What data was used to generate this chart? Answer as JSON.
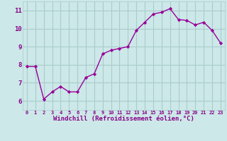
{
  "x": [
    0,
    1,
    2,
    3,
    4,
    5,
    6,
    7,
    8,
    9,
    10,
    11,
    12,
    13,
    14,
    15,
    16,
    17,
    18,
    19,
    20,
    21,
    22,
    23
  ],
  "y": [
    7.9,
    7.9,
    6.1,
    6.5,
    6.8,
    6.5,
    6.5,
    7.3,
    7.5,
    8.6,
    8.8,
    8.9,
    9.0,
    9.9,
    10.35,
    10.8,
    10.9,
    11.1,
    10.5,
    10.45,
    10.2,
    10.35,
    9.9,
    9.2
  ],
  "line_color": "#990099",
  "marker": "D",
  "marker_size": 2.2,
  "bg_color": "#cce8e8",
  "grid_color": "#aacccc",
  "xlabel": "Windchill (Refroidissement éolien,°C)",
  "xlabel_color": "#880088",
  "tick_color": "#880088",
  "ylim": [
    5.5,
    11.5
  ],
  "xlim": [
    -0.5,
    23.5
  ],
  "yticks": [
    6,
    7,
    8,
    9,
    10,
    11
  ],
  "xticks": [
    0,
    1,
    2,
    3,
    4,
    5,
    6,
    7,
    8,
    9,
    10,
    11,
    12,
    13,
    14,
    15,
    16,
    17,
    18,
    19,
    20,
    21,
    22,
    23
  ],
  "xtick_labels": [
    "0",
    "1",
    "2",
    "3",
    "4",
    "5",
    "6",
    "7",
    "8",
    "9",
    "10",
    "11",
    "12",
    "13",
    "14",
    "15",
    "16",
    "17",
    "18",
    "19",
    "20",
    "21",
    "22",
    "23"
  ]
}
